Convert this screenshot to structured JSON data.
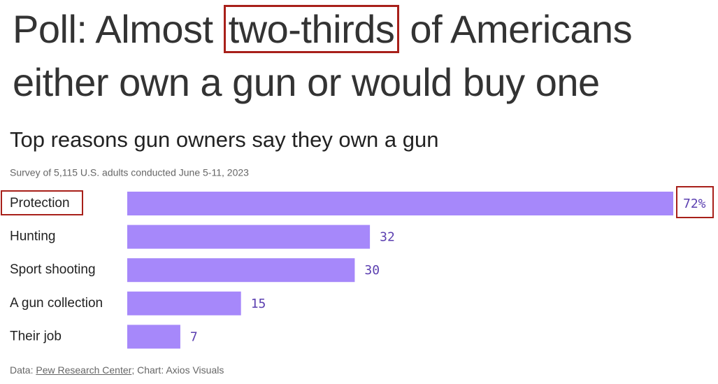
{
  "headline": {
    "before": "Poll: Almost",
    "highlight": "two-thirds",
    "after": "of Americans either own a gun or would buy one"
  },
  "chart_data": {
    "type": "bar",
    "orientation": "horizontal",
    "title": "Top reasons gun owners say they own a gun",
    "subtitle": "Survey of 5,115 U.S. adults conducted June 5-11, 2023",
    "categories": [
      "Protection",
      "Hunting",
      "Sport shooting",
      "A gun collection",
      "Their job"
    ],
    "values": [
      72,
      32,
      30,
      15,
      7
    ],
    "value_labels": [
      "72%",
      "32",
      "30",
      "15",
      "7"
    ],
    "color": "#a688fa",
    "source": {
      "prefix": "Data:",
      "link": "Pew Research Center",
      "suffix": "; Chart: Axios Visuals"
    }
  }
}
